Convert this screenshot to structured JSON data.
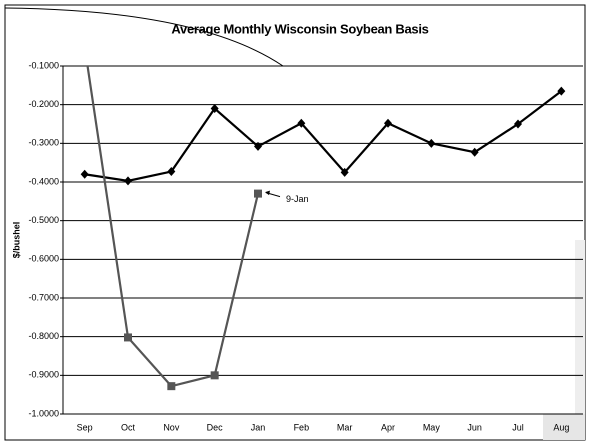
{
  "chart_data": {
    "type": "line",
    "title": "Average Monthly Wisconsin Soybean Basis",
    "y_label": "$/bushel",
    "categories": [
      "Sep",
      "Oct",
      "Nov",
      "Dec",
      "Jan",
      "Feb",
      "Mar",
      "Apr",
      "May",
      "Jun",
      "Jul",
      "Aug"
    ],
    "series": [
      {
        "color": "#000000",
        "marker": "diamond",
        "values": [
          -0.38,
          -0.397,
          -0.373,
          -0.21,
          -0.308,
          -0.248,
          -0.375,
          -0.248,
          -0.3,
          -0.323,
          -0.25,
          -0.165
        ]
      },
      {
        "color": "#555555",
        "marker": "square",
        "values": [
          -0.05,
          -0.802,
          -0.928,
          -0.9,
          -0.43,
          null,
          null,
          null,
          null,
          null,
          null,
          null
        ]
      }
    ],
    "annotations": [
      {
        "text": "9-Jan",
        "series": 1,
        "index": 4
      }
    ],
    "ylim": [
      -1.0,
      -0.1
    ],
    "yticks": [
      {
        "value": -1.0,
        "label": "-1.0000"
      },
      {
        "value": -0.9,
        "label": "-0.9000"
      },
      {
        "value": -0.8,
        "label": "-0.8000"
      },
      {
        "value": -0.7,
        "label": "-0.7000"
      },
      {
        "value": -0.6,
        "label": "-0.6000"
      },
      {
        "value": -0.5,
        "label": "-0.5000"
      },
      {
        "value": -0.4,
        "label": "-0.4000"
      },
      {
        "value": -0.3,
        "label": "-0.3000"
      },
      {
        "value": -0.2,
        "label": "-0.2000"
      },
      {
        "value": -0.1,
        "label": "-0.1000"
      }
    ],
    "grid": true
  }
}
